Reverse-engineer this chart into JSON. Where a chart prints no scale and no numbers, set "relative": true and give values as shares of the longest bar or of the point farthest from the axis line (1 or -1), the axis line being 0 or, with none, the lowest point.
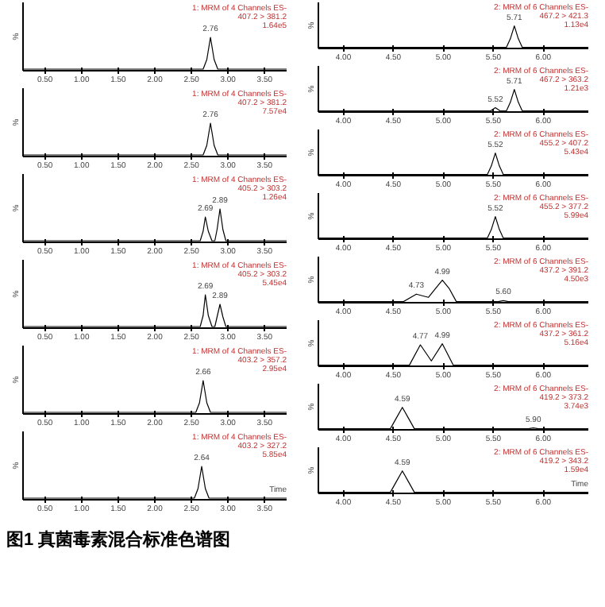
{
  "chart_data": [
    {
      "type": "line",
      "title": "1: MRM of 4 Channels ES-",
      "subtitle": "407.2 > 381.2",
      "ylabel": "%",
      "tick_labels": "x",
      "relative": true,
      "xlim": [
        0.2,
        3.8
      ],
      "xticks": [
        {
          "value": 0.5,
          "label": "0.50"
        },
        {
          "value": 1,
          "label": "1.00"
        },
        {
          "value": 1.5,
          "label": "1.50"
        },
        {
          "value": 2,
          "label": "2.00"
        },
        {
          "value": 2.5,
          "label": "2.50"
        },
        {
          "value": 3,
          "label": "3.00"
        },
        {
          "value": 3.5,
          "label": "3.50"
        }
      ],
      "x": [
        0.2,
        2.66,
        2.71,
        2.76,
        2.81,
        2.86,
        3.8
      ],
      "series": [
        {
          "color": "#000000",
          "values": [
            0,
            0,
            0.3,
            1,
            0.3,
            0,
            0
          ]
        }
      ],
      "annotations": [
        "1.64e5",
        {
          "text": "2.76",
          "x": 2.76,
          "y": 1
        }
      ]
    },
    {
      "type": "line",
      "title": "1: MRM of 4 Channels ES-",
      "subtitle": "407.2 > 381.2",
      "ylabel": "%",
      "tick_labels": "x",
      "relative": true,
      "xlim": [
        0.2,
        3.8
      ],
      "xticks": [
        {
          "value": 0.5,
          "label": "0.50"
        },
        {
          "value": 1,
          "label": "1.00"
        },
        {
          "value": 1.5,
          "label": "1.50"
        },
        {
          "value": 2,
          "label": "2.00"
        },
        {
          "value": 2.5,
          "label": "2.50"
        },
        {
          "value": 3,
          "label": "3.00"
        },
        {
          "value": 3.5,
          "label": "3.50"
        }
      ],
      "x": [
        0.2,
        2.66,
        2.71,
        2.76,
        2.81,
        2.86,
        3.8
      ],
      "series": [
        {
          "color": "#000000",
          "values": [
            0,
            0,
            0.3,
            1,
            0.3,
            0,
            0
          ]
        }
      ],
      "annotations": [
        "7.57e4",
        {
          "text": "2.76",
          "x": 2.76,
          "y": 1
        }
      ]
    },
    {
      "type": "line",
      "title": "1: MRM of 4 Channels ES-",
      "subtitle": "405.2 > 303.2",
      "ylabel": "%",
      "tick_labels": "x",
      "relative": true,
      "xlim": [
        0.2,
        3.8
      ],
      "xticks": [
        {
          "value": 0.5,
          "label": "0.50"
        },
        {
          "value": 1,
          "label": "1.00"
        },
        {
          "value": 1.5,
          "label": "1.50"
        },
        {
          "value": 2,
          "label": "2.00"
        },
        {
          "value": 2.5,
          "label": "2.50"
        },
        {
          "value": 3,
          "label": "3.00"
        },
        {
          "value": 3.5,
          "label": "3.50"
        }
      ],
      "x": [
        0.2,
        2.62,
        2.66,
        2.69,
        2.73,
        2.78,
        2.82,
        2.85,
        2.89,
        2.93,
        2.97,
        3.8
      ],
      "series": [
        {
          "color": "#000000",
          "values": [
            0,
            0,
            0.3,
            0.75,
            0.3,
            0,
            0,
            0.35,
            1,
            0.35,
            0,
            0
          ]
        }
      ],
      "annotations": [
        "1.26e4",
        {
          "text": "2.69",
          "x": 2.69,
          "y": 0.75
        },
        {
          "text": "2.89",
          "x": 2.89,
          "y": 1
        }
      ]
    },
    {
      "type": "line",
      "title": "1: MRM of 4 Channels ES-",
      "subtitle": "405.2 > 303.2",
      "ylabel": "%",
      "tick_labels": "x",
      "relative": true,
      "xlim": [
        0.2,
        3.8
      ],
      "xticks": [
        {
          "value": 0.5,
          "label": "0.50"
        },
        {
          "value": 1,
          "label": "1.00"
        },
        {
          "value": 1.5,
          "label": "1.50"
        },
        {
          "value": 2,
          "label": "2.00"
        },
        {
          "value": 2.5,
          "label": "2.50"
        },
        {
          "value": 3,
          "label": "3.00"
        },
        {
          "value": 3.5,
          "label": "3.50"
        }
      ],
      "x": [
        0.2,
        2.62,
        2.66,
        2.69,
        2.73,
        2.78,
        2.82,
        2.85,
        2.89,
        2.93,
        2.97,
        3.8
      ],
      "series": [
        {
          "color": "#000000",
          "values": [
            0,
            0,
            0.35,
            1,
            0.35,
            0,
            0,
            0.3,
            0.7,
            0.3,
            0,
            0
          ]
        }
      ],
      "annotations": [
        "5.45e4",
        {
          "text": "2.69",
          "x": 2.69,
          "y": 1
        },
        {
          "text": "2.89",
          "x": 2.89,
          "y": 0.7
        }
      ]
    },
    {
      "type": "line",
      "title": "1: MRM of 4 Channels ES-",
      "subtitle": "403.2 > 357.2",
      "ylabel": "%",
      "tick_labels": "x",
      "relative": true,
      "xlim": [
        0.2,
        3.8
      ],
      "xticks": [
        {
          "value": 0.5,
          "label": "0.50"
        },
        {
          "value": 1,
          "label": "1.00"
        },
        {
          "value": 1.5,
          "label": "1.50"
        },
        {
          "value": 2,
          "label": "2.00"
        },
        {
          "value": 2.5,
          "label": "2.50"
        },
        {
          "value": 3,
          "label": "3.00"
        },
        {
          "value": 3.5,
          "label": "3.50"
        }
      ],
      "x": [
        0.2,
        2.56,
        2.61,
        2.66,
        2.71,
        2.76,
        3.8
      ],
      "series": [
        {
          "color": "#000000",
          "values": [
            0,
            0,
            0.3,
            1,
            0.3,
            0,
            0
          ]
        }
      ],
      "annotations": [
        "2.95e4",
        {
          "text": "2.66",
          "x": 2.66,
          "y": 1
        }
      ]
    },
    {
      "type": "line",
      "title": "1: MRM of 4 Channels ES-",
      "subtitle": "403.2 > 327.2",
      "ylabel": "%",
      "xlabel": "Time",
      "tick_labels": "x",
      "relative": true,
      "xlim": [
        0.2,
        3.8
      ],
      "xticks": [
        {
          "value": 0.5,
          "label": "0.50"
        },
        {
          "value": 1,
          "label": "1.00"
        },
        {
          "value": 1.5,
          "label": "1.50"
        },
        {
          "value": 2,
          "label": "2.00"
        },
        {
          "value": 2.5,
          "label": "2.50"
        },
        {
          "value": 3,
          "label": "3.00"
        },
        {
          "value": 3.5,
          "label": "3.50"
        }
      ],
      "x": [
        0.2,
        2.54,
        2.59,
        2.64,
        2.69,
        2.74,
        3.8
      ],
      "series": [
        {
          "color": "#000000",
          "values": [
            0,
            0,
            0.3,
            1,
            0.3,
            0,
            0
          ]
        }
      ],
      "annotations": [
        "5.85e4",
        {
          "text": "2.64",
          "x": 2.64,
          "y": 1
        }
      ]
    },
    {
      "type": "line",
      "title": "2: MRM of 6 Channels ES-",
      "subtitle": "467.2 > 421.3",
      "ylabel": "%",
      "tick_labels": "x",
      "relative": true,
      "xlim": [
        3.75,
        6.45
      ],
      "xticks": [
        {
          "value": 4,
          "label": "4.00"
        },
        {
          "value": 4.5,
          "label": "4.50"
        },
        {
          "value": 5,
          "label": "5.00"
        },
        {
          "value": 5.5,
          "label": "5.50"
        },
        {
          "value": 6,
          "label": "6.00"
        }
      ],
      "x": [
        3.75,
        5.63,
        5.67,
        5.71,
        5.75,
        5.79,
        6.45
      ],
      "series": [
        {
          "color": "#000000",
          "values": [
            0,
            0,
            0.4,
            1,
            0.4,
            0,
            0
          ]
        }
      ],
      "annotations": [
        "1.13e4",
        {
          "text": "5.71",
          "x": 5.71,
          "y": 1
        }
      ]
    },
    {
      "type": "line",
      "title": "2: MRM of 6 Channels ES-",
      "subtitle": "467.2 > 363.2",
      "ylabel": "%",
      "tick_labels": "x",
      "relative": true,
      "xlim": [
        3.75,
        6.45
      ],
      "xticks": [
        {
          "value": 4,
          "label": "4.00"
        },
        {
          "value": 4.5,
          "label": "4.50"
        },
        {
          "value": 5,
          "label": "5.00"
        },
        {
          "value": 5.5,
          "label": "5.50"
        },
        {
          "value": 6,
          "label": "6.00"
        }
      ],
      "x": [
        3.75,
        5.47,
        5.52,
        5.57,
        5.63,
        5.67,
        5.71,
        5.75,
        5.79,
        6.45
      ],
      "series": [
        {
          "color": "#000000",
          "values": [
            0,
            0,
            0.15,
            0,
            0,
            0.4,
            1,
            0.4,
            0,
            0
          ]
        }
      ],
      "annotations": [
        "1.21e3",
        {
          "text": "5.52",
          "x": 5.52,
          "y": 0.15
        },
        {
          "text": "5.71",
          "x": 5.71,
          "y": 1
        }
      ]
    },
    {
      "type": "line",
      "title": "2: MRM of 6 Channels ES-",
      "subtitle": "455.2 > 407.2",
      "ylabel": "%",
      "tick_labels": "x",
      "relative": true,
      "xlim": [
        3.75,
        6.45
      ],
      "xticks": [
        {
          "value": 4,
          "label": "4.00"
        },
        {
          "value": 4.5,
          "label": "4.50"
        },
        {
          "value": 5,
          "label": "5.00"
        },
        {
          "value": 5.5,
          "label": "5.50"
        },
        {
          "value": 6,
          "label": "6.00"
        }
      ],
      "x": [
        3.75,
        5.44,
        5.48,
        5.52,
        5.56,
        5.6,
        6.45
      ],
      "series": [
        {
          "color": "#000000",
          "values": [
            0,
            0,
            0.4,
            1,
            0.4,
            0,
            0
          ]
        }
      ],
      "annotations": [
        "5.43e4",
        {
          "text": "5.52",
          "x": 5.52,
          "y": 1
        }
      ]
    },
    {
      "type": "line",
      "title": "2: MRM of 6 Channels ES-",
      "subtitle": "455.2 > 377.2",
      "ylabel": "%",
      "tick_labels": "x",
      "relative": true,
      "xlim": [
        3.75,
        6.45
      ],
      "xticks": [
        {
          "value": 4,
          "label": "4.00"
        },
        {
          "value": 4.5,
          "label": "4.50"
        },
        {
          "value": 5,
          "label": "5.00"
        },
        {
          "value": 5.5,
          "label": "5.50"
        },
        {
          "value": 6,
          "label": "6.00"
        }
      ],
      "x": [
        3.75,
        5.44,
        5.48,
        5.52,
        5.56,
        5.6,
        6.45
      ],
      "series": [
        {
          "color": "#000000",
          "values": [
            0,
            0,
            0.4,
            1,
            0.4,
            0,
            0
          ]
        }
      ],
      "annotations": [
        "5.99e4",
        {
          "text": "5.52",
          "x": 5.52,
          "y": 1
        }
      ]
    },
    {
      "type": "line",
      "title": "2: MRM of 6 Channels ES-",
      "subtitle": "437.2 > 391.2",
      "ylabel": "%",
      "tick_labels": "x",
      "relative": true,
      "xlim": [
        3.75,
        6.45
      ],
      "xticks": [
        {
          "value": 4,
          "label": "4.00"
        },
        {
          "value": 4.5,
          "label": "4.50"
        },
        {
          "value": 5,
          "label": "5.00"
        },
        {
          "value": 5.5,
          "label": "5.50"
        },
        {
          "value": 6,
          "label": "6.00"
        }
      ],
      "x": [
        3.75,
        4.6,
        4.73,
        4.85,
        4.92,
        4.99,
        5.06,
        5.13,
        5.55,
        5.6,
        5.65,
        6.45
      ],
      "series": [
        {
          "color": "#000000",
          "values": [
            0,
            0,
            0.35,
            0.2,
            0.6,
            1,
            0.6,
            0,
            0,
            0.05,
            0,
            0
          ]
        }
      ],
      "annotations": [
        "4.50e3",
        {
          "text": "4.73",
          "x": 4.73,
          "y": 0.35
        },
        {
          "text": "4.99",
          "x": 4.99,
          "y": 1
        },
        {
          "text": "5.60",
          "x": 5.6,
          "y": 0.05
        }
      ]
    },
    {
      "type": "line",
      "title": "2: MRM of 6 Channels ES-",
      "subtitle": "437.2 > 361.2",
      "ylabel": "%",
      "tick_labels": "x",
      "relative": true,
      "xlim": [
        3.75,
        6.45
      ],
      "xticks": [
        {
          "value": 4,
          "label": "4.00"
        },
        {
          "value": 4.5,
          "label": "4.50"
        },
        {
          "value": 5,
          "label": "5.00"
        },
        {
          "value": 5.5,
          "label": "5.50"
        },
        {
          "value": 6,
          "label": "6.00"
        }
      ],
      "x": [
        3.75,
        4.66,
        4.77,
        4.88,
        4.99,
        5.1,
        6.45
      ],
      "series": [
        {
          "color": "#000000",
          "values": [
            0,
            0,
            0.95,
            0.2,
            1,
            0,
            0
          ]
        }
      ],
      "annotations": [
        "5.16e4",
        {
          "text": "4.77",
          "x": 4.77,
          "y": 0.95
        },
        {
          "text": "4.99",
          "x": 4.99,
          "y": 1
        }
      ]
    },
    {
      "type": "line",
      "title": "2: MRM of 6 Channels ES-",
      "subtitle": "419.2 > 373.2",
      "ylabel": "%",
      "tick_labels": "x",
      "relative": true,
      "xlim": [
        3.75,
        6.45
      ],
      "xticks": [
        {
          "value": 4,
          "label": "4.00"
        },
        {
          "value": 4.5,
          "label": "4.50"
        },
        {
          "value": 5,
          "label": "5.00"
        },
        {
          "value": 5.5,
          "label": "5.50"
        },
        {
          "value": 6,
          "label": "6.00"
        }
      ],
      "x": [
        3.75,
        4.47,
        4.53,
        4.59,
        4.65,
        4.71,
        5.85,
        5.9,
        5.95,
        6.45
      ],
      "series": [
        {
          "color": "#000000",
          "values": [
            0,
            0,
            0.5,
            1,
            0.5,
            0,
            0,
            0.04,
            0,
            0
          ]
        }
      ],
      "annotations": [
        "3.74e3",
        {
          "text": "4.59",
          "x": 4.59,
          "y": 1
        },
        {
          "text": "5.90",
          "x": 5.9,
          "y": 0.04
        }
      ]
    },
    {
      "type": "line",
      "title": "2: MRM of 6 Channels ES-",
      "subtitle": "419.2 > 343.2",
      "ylabel": "%",
      "xlabel": "Time",
      "tick_labels": "x",
      "relative": true,
      "xlim": [
        3.75,
        6.45
      ],
      "xticks": [
        {
          "value": 4,
          "label": "4.00"
        },
        {
          "value": 4.5,
          "label": "4.50"
        },
        {
          "value": 5,
          "label": "5.00"
        },
        {
          "value": 5.5,
          "label": "5.50"
        },
        {
          "value": 6,
          "label": "6.00"
        }
      ],
      "x": [
        3.75,
        4.47,
        4.53,
        4.59,
        4.65,
        4.71,
        6.45
      ],
      "series": [
        {
          "color": "#000000",
          "values": [
            0,
            0,
            0.5,
            1,
            0.5,
            0,
            0
          ]
        }
      ],
      "annotations": [
        "1.59e4",
        {
          "text": "4.59",
          "x": 4.59,
          "y": 1
        }
      ]
    },
    {
      "type": "other",
      "title": "图1 真菌毒素混合标准色谱图"
    }
  ]
}
